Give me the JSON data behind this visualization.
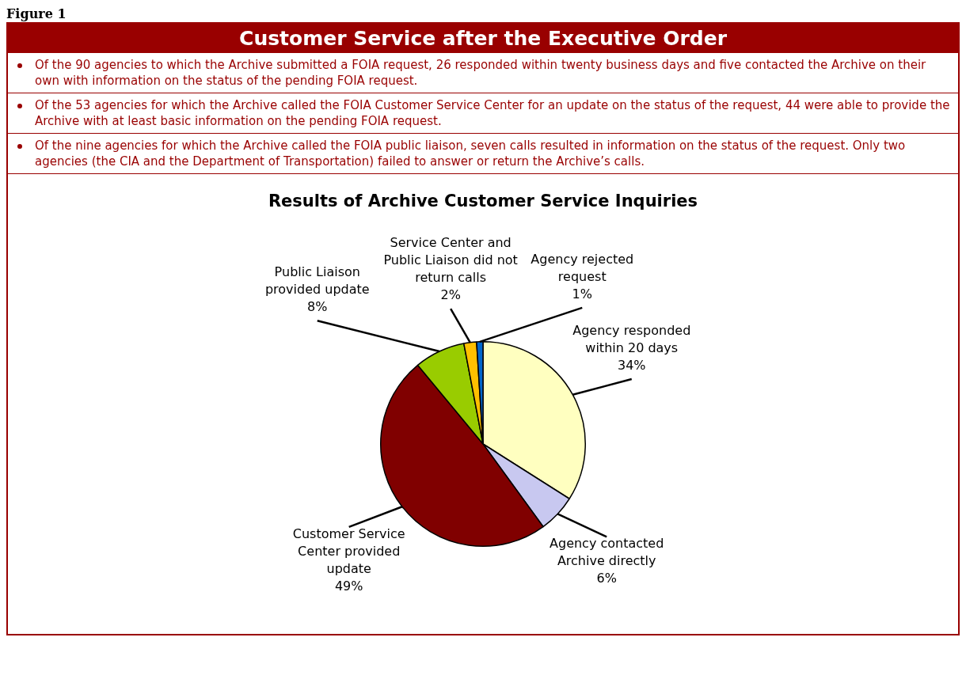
{
  "chart_data": {
    "type": "pie",
    "title": "Results of Archive Customer Service Inquiries",
    "annotations": [
      "Figure 1",
      "Customer Service after the Executive Order",
      "Of the 90 agencies to which the Archive submitted a FOIA request, 26 responded within twenty business days and five contacted the Archive on their own with information on the status of the pending FOIA request.",
      "Of the 53 agencies for which the Archive called the FOIA Customer Service Center for an update on the status of the request, 44 were able to provide the Archive with at least basic information on the pending FOIA request.",
      "Of the nine agencies for which the Archive called the FOIA public liaison, seven calls resulted in information on the status of the request. Only two agencies (the CIA and the Department of Transportation) failed to answer or return the Archive’s calls."
    ],
    "categories": [
      "Agency responded within 20 days",
      "Agency contacted Archive directly",
      "Customer Service Center provided update",
      "Public Liaison provided update",
      "Service Center and Public Liaison did not return calls",
      "Agency rejected request"
    ],
    "values": [
      34,
      6,
      49,
      8,
      2,
      1
    ],
    "colors": [
      "#ffffc0",
      "#c8c8f0",
      "#800000",
      "#99cc00",
      "#ffc000",
      "#0066cc"
    ],
    "value_labels": [
      "34%",
      "6%",
      "49%",
      "8%",
      "2%",
      "1%"
    ],
    "legend": false
  }
}
